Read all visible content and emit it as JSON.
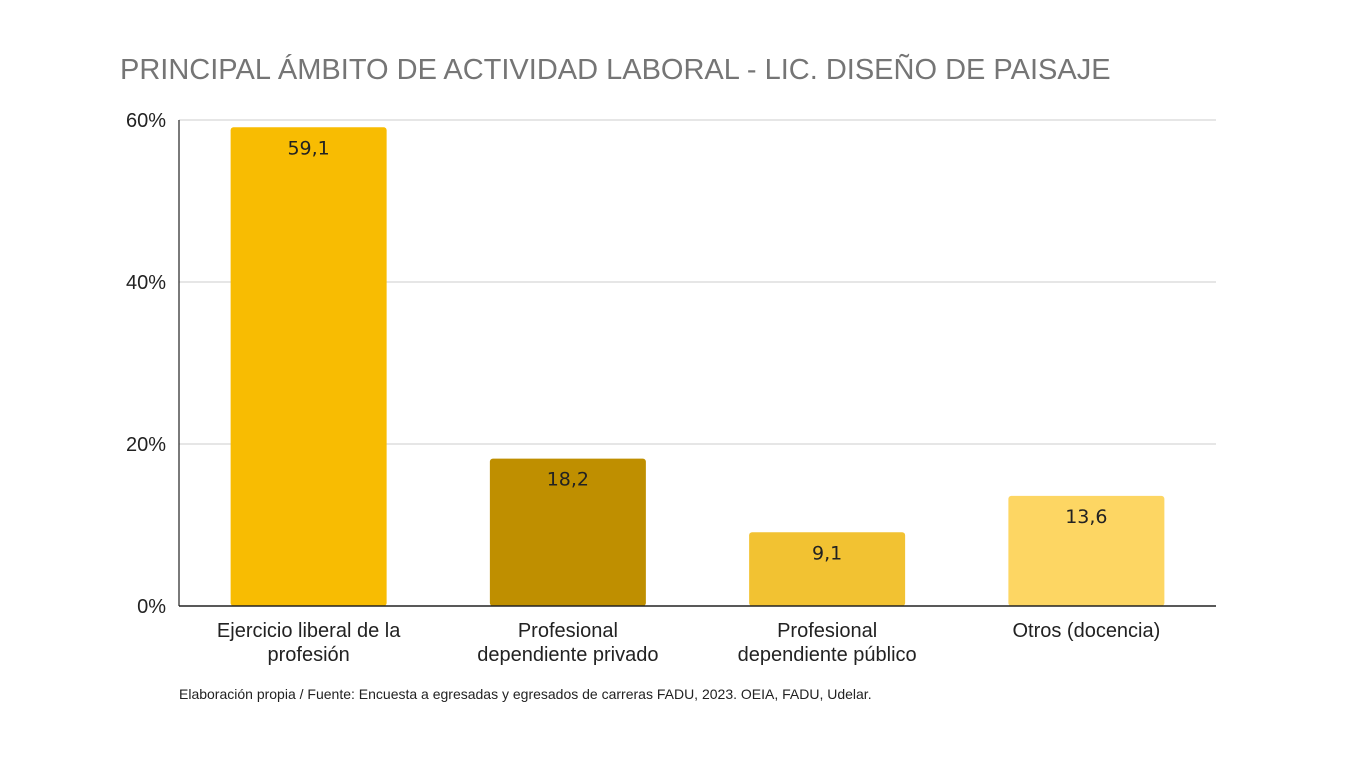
{
  "chart_data": {
    "type": "bar",
    "title": "PRINCIPAL ÁMBITO DE ACTIVIDAD LABORAL - LIC. DISEÑO DE PAISAJE",
    "categories": [
      [
        "Ejercicio liberal de la",
        "profesión"
      ],
      [
        "Profesional",
        "dependiente privado"
      ],
      [
        "Profesional",
        "dependiente público"
      ],
      [
        "Otros (docencia)"
      ]
    ],
    "values": [
      59.1,
      18.2,
      9.1,
      13.6
    ],
    "value_labels": [
      "59,1",
      "18,2",
      "9,1",
      "13,6"
    ],
    "colors": [
      "#F8BC02",
      "#BF8F00",
      "#F2C232",
      "#FDD663"
    ],
    "ylim": [
      0,
      60
    ],
    "yticks": [
      0,
      20,
      40,
      60
    ],
    "ytick_labels": [
      "0%",
      "20%",
      "40%",
      "60%"
    ],
    "xlabel": "",
    "ylabel": "",
    "grid": true,
    "legend": "none",
    "source": "Elaboración propia / Fuente: Encuesta a egresadas y egresados de carreras FADU, 2023. OEIA, FADU, Udelar."
  }
}
